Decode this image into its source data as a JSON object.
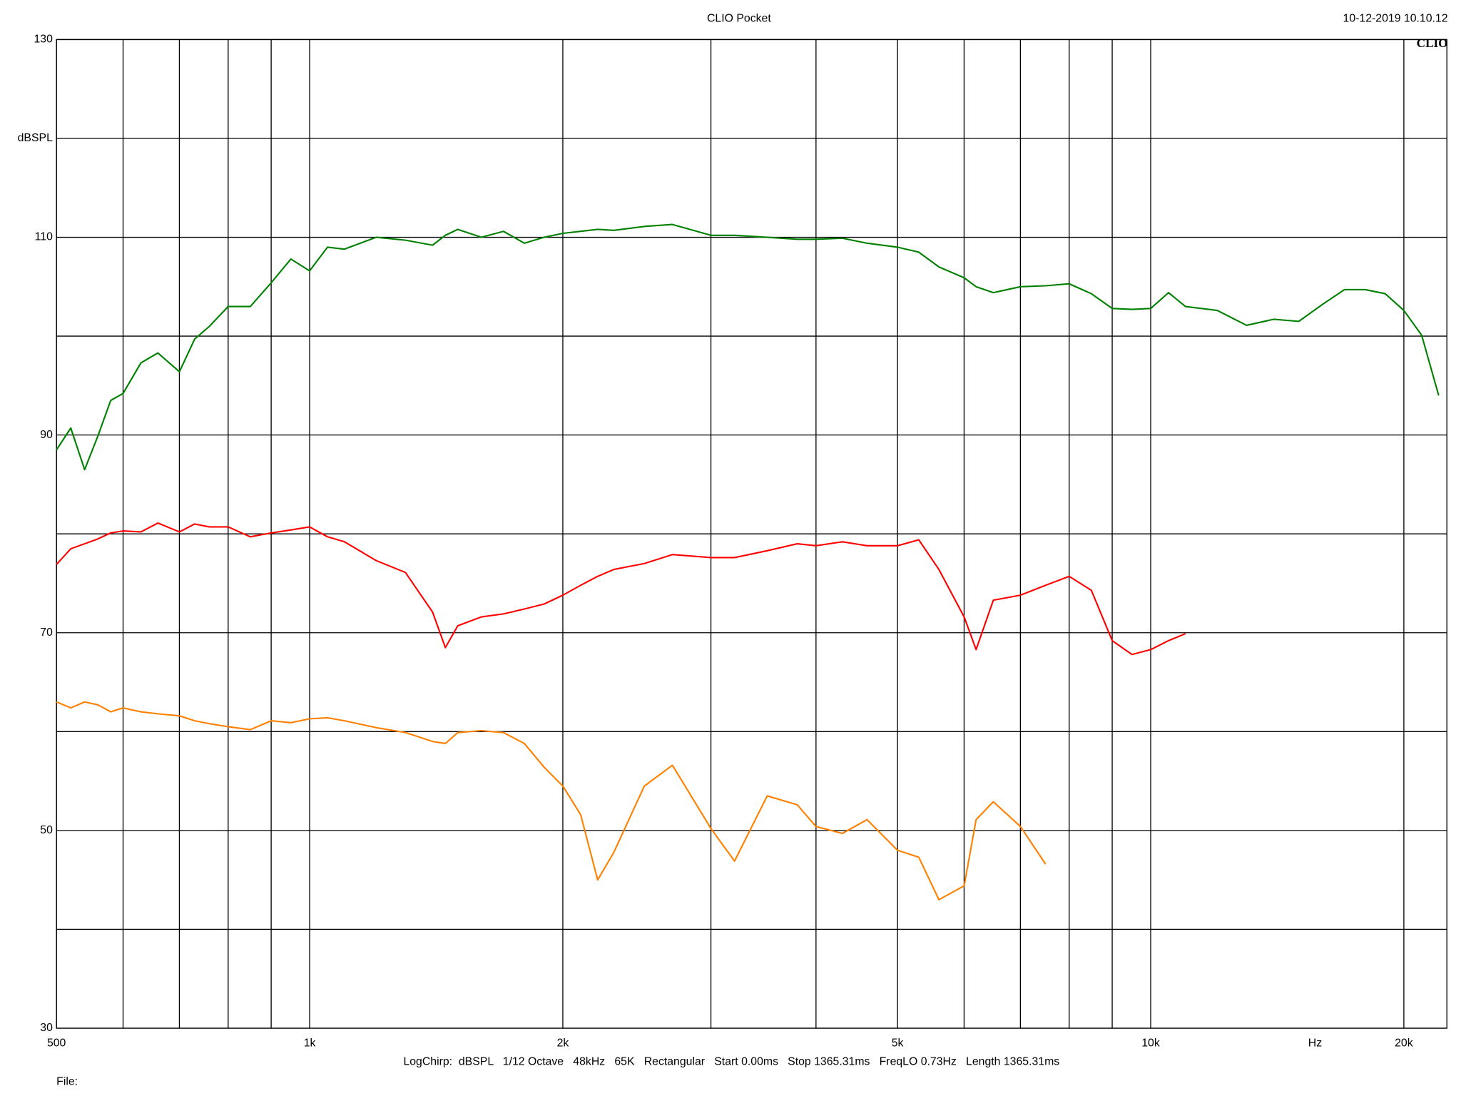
{
  "chart_data": {
    "type": "line",
    "title": "CLIO Pocket",
    "timestamp": "10-12-2019 10.10.12",
    "logo": "CLIO",
    "y_label": "dBSPL",
    "x_label": "Hz",
    "footer": "LogChirp:  dBSPL   1/12 Octave   48kHz   65K   Rectangular   Start 0.00ms   Stop 1365.31ms   FreqLO 0.73Hz   Length 1365.31ms",
    "file_label": "File:",
    "log_x": true,
    "grid": true,
    "xlim": [
      500,
      22500
    ],
    "ylim": [
      30,
      130
    ],
    "xticks": [
      500,
      {
        "value": 1000,
        "label": "1k"
      },
      {
        "value": 2000,
        "label": "2k"
      },
      {
        "value": 5000,
        "label": "5k"
      },
      {
        "value": 10000,
        "label": "10k"
      },
      {
        "value": 20000,
        "label": "20k"
      }
    ],
    "minor_xticks": [
      600,
      700,
      800,
      900,
      3000,
      4000,
      6000,
      7000,
      8000,
      9000
    ],
    "yticks": [
      30,
      50,
      70,
      90,
      110,
      130
    ],
    "minor_yticks": [
      40,
      60,
      80,
      100,
      120
    ],
    "x": [
      500,
      520,
      540,
      560,
      580,
      600,
      630,
      660,
      700,
      730,
      760,
      800,
      850,
      900,
      950,
      1000,
      1050,
      1100,
      1200,
      1300,
      1400,
      1450,
      1500,
      1600,
      1700,
      1800,
      1900,
      2000,
      2100,
      2200,
      2300,
      2500,
      2700,
      3000,
      3200,
      3500,
      3800,
      4000,
      4300,
      4600,
      5000,
      5300,
      5600,
      6000,
      6200,
      6500,
      7000,
      7500,
      8000,
      8500,
      9000,
      9500,
      10000,
      10500,
      11000,
      12000,
      13000,
      14000,
      15000,
      16000,
      17000,
      18000,
      19000,
      20000,
      21000,
      22000
    ],
    "series": [
      {
        "color": "#008000",
        "values": [
          88.5,
          90.7,
          86.5,
          89.9,
          93.5,
          94.2,
          97.3,
          98.3,
          96.4,
          99.7,
          101.0,
          103.0,
          103.0,
          105.4,
          107.8,
          106.6,
          109.0,
          108.8,
          110.0,
          109.7,
          109.2,
          110.2,
          110.8,
          110.0,
          110.6,
          109.4,
          110.0,
          110.4,
          110.6,
          110.8,
          110.7,
          111.1,
          111.3,
          110.2,
          110.2,
          110.0,
          109.8,
          109.8,
          109.9,
          109.4,
          109.0,
          108.5,
          107.0,
          105.9,
          105.0,
          104.4,
          105.0,
          105.1,
          105.3,
          104.3,
          102.8,
          102.7,
          102.8,
          104.4,
          103.0,
          102.6,
          101.1,
          101.7,
          101.5,
          103.2,
          104.7,
          104.7,
          104.3,
          102.6,
          100.1,
          94.0
        ]
      },
      {
        "color": "#ff0000",
        "values": [
          76.9,
          78.5,
          79.0,
          79.5,
          80.1,
          80.3,
          80.2,
          81.1,
          80.2,
          81.0,
          80.7,
          80.7,
          79.7,
          80.1,
          80.4,
          80.7,
          79.7,
          79.2,
          77.3,
          76.1,
          72.1,
          68.5,
          70.7,
          71.6,
          71.9,
          72.4,
          72.9,
          73.8,
          74.8,
          75.7,
          76.4,
          77.0,
          77.9,
          77.6,
          77.6,
          78.3,
          79.0,
          78.8,
          79.2,
          78.8,
          78.8,
          79.4,
          76.4,
          71.6,
          68.3,
          73.3,
          73.8,
          74.8,
          75.7,
          74.3,
          69.2,
          67.8,
          68.3,
          69.2,
          69.9,
          null,
          null,
          null,
          null,
          null,
          null,
          null,
          null,
          null,
          null,
          null
        ]
      },
      {
        "color": "#ff8000",
        "values": [
          63.0,
          62.4,
          63.0,
          62.7,
          62.0,
          62.4,
          62.0,
          61.8,
          61.6,
          61.1,
          60.8,
          60.5,
          60.2,
          61.1,
          60.9,
          61.3,
          61.4,
          61.1,
          60.4,
          59.9,
          59.0,
          58.8,
          59.9,
          60.1,
          59.9,
          58.8,
          56.4,
          54.5,
          51.6,
          45.0,
          47.8,
          54.5,
          56.6,
          50.2,
          46.9,
          53.5,
          52.6,
          50.4,
          49.7,
          51.1,
          48.0,
          47.3,
          43.0,
          44.4,
          51.1,
          52.9,
          50.4,
          46.6,
          null,
          null,
          null,
          null,
          null,
          null,
          null,
          null,
          null,
          null,
          null,
          null,
          null,
          null,
          null,
          null,
          null,
          null
        ]
      }
    ]
  }
}
